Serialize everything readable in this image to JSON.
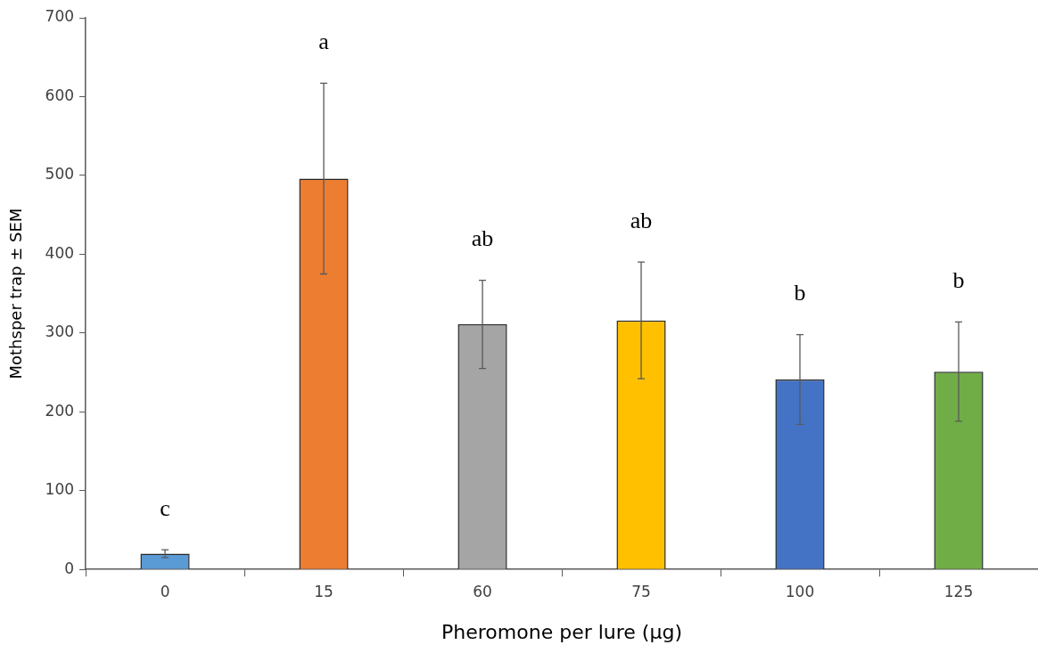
{
  "chart_data": {
    "type": "bar",
    "xlabel": "Pheromone per lure (µg)",
    "ylabel": "Mothsper trap ± SEM",
    "categories": [
      "0",
      "15",
      "60",
      "75",
      "100",
      "125"
    ],
    "values": [
      20,
      496,
      311,
      316,
      241,
      251
    ],
    "errors": [
      5,
      121,
      56,
      74,
      57,
      63
    ],
    "colors": [
      "#5b9bd5",
      "#ed7d31",
      "#a5a5a5",
      "#ffc000",
      "#4472c4",
      "#70ad47"
    ],
    "ylim": [
      0,
      700
    ],
    "yticks": [
      0,
      100,
      200,
      300,
      400,
      500,
      600,
      700
    ],
    "grid": false,
    "annotations": [
      "c",
      "a",
      "ab",
      "ab",
      "b",
      "b"
    ]
  }
}
